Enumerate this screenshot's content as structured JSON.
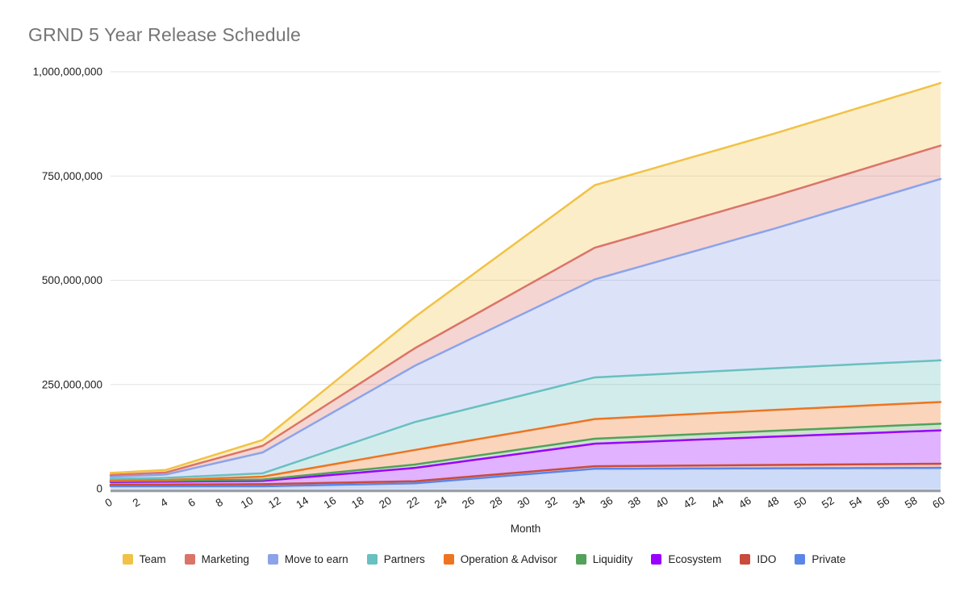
{
  "title": "GRND 5 Year Release Schedule",
  "chart_data": {
    "type": "area",
    "stacked": true,
    "title": "GRND 5 Year Release Schedule",
    "xlabel": "Month",
    "ylabel": "",
    "grid": true,
    "legend_position": "bottom",
    "x_range": [
      0,
      60
    ],
    "y_range": [
      0,
      1000000000
    ],
    "x_ticks": [
      0,
      2,
      4,
      6,
      8,
      10,
      12,
      14,
      16,
      18,
      20,
      22,
      24,
      26,
      28,
      30,
      32,
      34,
      36,
      38,
      40,
      42,
      44,
      46,
      48,
      50,
      52,
      54,
      56,
      58,
      60
    ],
    "y_ticks": [
      {
        "label": "0",
        "value": 0
      },
      {
        "label": "250,000,000",
        "value": 250000000
      },
      {
        "label": "500,000,000",
        "value": 500000000
      },
      {
        "label": "750,000,000",
        "value": 750000000
      },
      {
        "label": "1,000,000,000",
        "value": 1000000000
      }
    ],
    "values_unit": "tokens (values_millions are millions of tokens released, per series)",
    "interpolation": "linear",
    "fill_opacity": 0.3,
    "breakpoint_months": [
      0,
      4,
      11,
      22,
      35,
      48,
      60
    ],
    "series": [
      {
        "name": "Private",
        "color": "#5B86E8",
        "values_millions": [
          6,
          6,
          6,
          13,
          48,
          49,
          50
        ]
      },
      {
        "name": "IDO",
        "color": "#CA4A3C",
        "values_millions": [
          4,
          4,
          5,
          5,
          6,
          8,
          10
        ]
      },
      {
        "name": "Ecosystem",
        "color": "#9900FF",
        "values_millions": [
          6,
          7,
          8,
          32,
          54,
          68,
          80
        ]
      },
      {
        "name": "Liquidity",
        "color": "#53A15A",
        "values_millions": [
          2,
          2,
          3,
          8,
          12,
          14,
          16
        ]
      },
      {
        "name": "Operation & Advisor",
        "color": "#EE7420",
        "values_millions": [
          2,
          2,
          7,
          35,
          47,
          50,
          52
        ]
      },
      {
        "name": "Partners",
        "color": "#69C0C0",
        "values_millions": [
          4,
          5,
          8,
          67,
          100,
          100,
          100
        ]
      },
      {
        "name": "Move to earn",
        "color": "#8CA3EA",
        "values_millions": [
          5,
          8,
          50,
          135,
          235,
          335,
          435
        ]
      },
      {
        "name": "Marketing",
        "color": "#DB7468",
        "values_millions": [
          4,
          5,
          16,
          42,
          76,
          78,
          80
        ]
      },
      {
        "name": "Team",
        "color": "#F1C246",
        "values_millions": [
          5,
          6,
          14,
          75,
          150,
          150,
          150
        ]
      }
    ],
    "legend_order": [
      "Team",
      "Marketing",
      "Move to earn",
      "Partners",
      "Operation & Advisor",
      "Liquidity",
      "Ecosystem",
      "IDO",
      "Private"
    ]
  }
}
